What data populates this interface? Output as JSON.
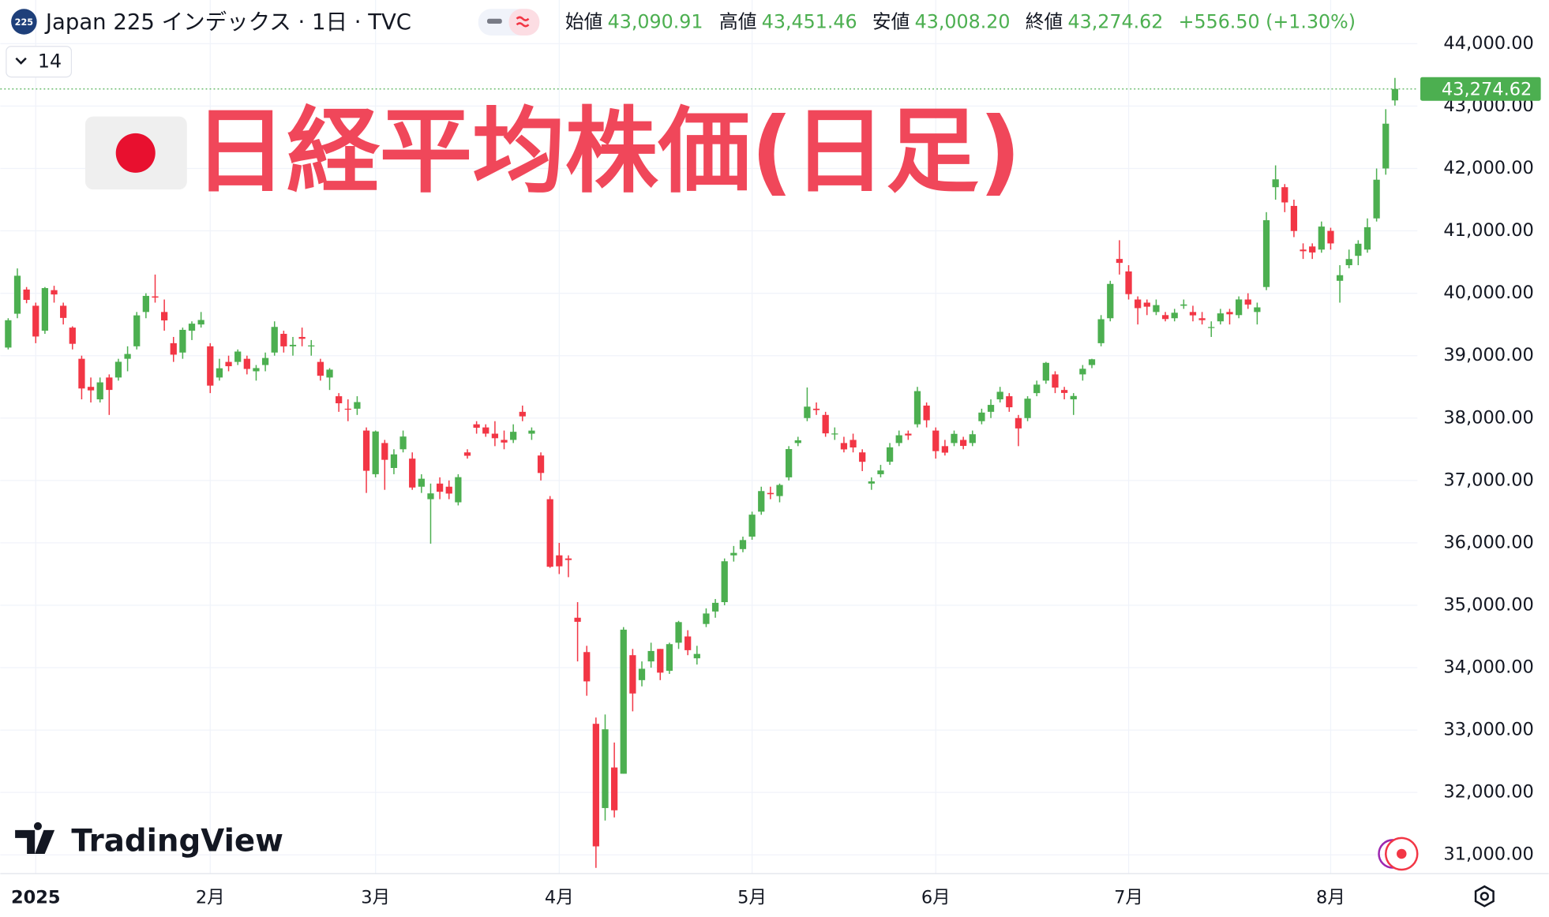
{
  "header": {
    "symbol_badge": "225",
    "symbol": "Japan 225 インデックス · 1日 · TVC",
    "interval": "14",
    "open_label": "始値",
    "open": "43,090.91",
    "high_label": "高値",
    "high": "43,451.46",
    "low_label": "安値",
    "low": "43,008.20",
    "close_label": "終値",
    "close": "43,274.62",
    "change": "+556.50 (+1.30%)"
  },
  "overlay_title": "日経平均株価(日足)",
  "watermark": "TradingView",
  "chart_data": {
    "type": "candlestick",
    "up_color": "#4caf50",
    "down_color": "#f23645",
    "grid": true,
    "ylim": [
      30700,
      44700
    ],
    "yticks": [
      {
        "value": 31000,
        "label": "31,000.00"
      },
      {
        "value": 32000,
        "label": "32,000.00"
      },
      {
        "value": 33000,
        "label": "33,000.00"
      },
      {
        "value": 34000,
        "label": "34,000.00"
      },
      {
        "value": 35000,
        "label": "35,000.00"
      },
      {
        "value": 36000,
        "label": "36,000.00"
      },
      {
        "value": 37000,
        "label": "37,000.00"
      },
      {
        "value": 38000,
        "label": "38,000.00"
      },
      {
        "value": 39000,
        "label": "39,000.00"
      },
      {
        "value": 40000,
        "label": "40,000.00"
      },
      {
        "value": 41000,
        "label": "41,000.00"
      },
      {
        "value": 42000,
        "label": "42,000.00"
      },
      {
        "value": 43000,
        "label": "43,000.00"
      },
      {
        "value": 44000,
        "label": "44,000.00"
      }
    ],
    "xticks": [
      {
        "value": 3,
        "label": "2025"
      },
      {
        "value": 22,
        "label": "2月"
      },
      {
        "value": 40,
        "label": "3月"
      },
      {
        "value": 60,
        "label": "4月"
      },
      {
        "value": 81,
        "label": "5月"
      },
      {
        "value": 101,
        "label": "6月"
      },
      {
        "value": 122,
        "label": "7月"
      },
      {
        "value": 144,
        "label": "8月"
      }
    ],
    "last_price": {
      "value": 43274.62,
      "label": "43,274.62"
    },
    "open": [
      39130,
      39672,
      40060,
      39800,
      39400,
      40050,
      39800,
      39450,
      38950,
      38500,
      38300,
      38650,
      38650,
      38950,
      39150,
      39700,
      39950,
      39700,
      39200,
      39050,
      39400,
      39500,
      39150,
      38650,
      38900,
      38900,
      38950,
      38750,
      38850,
      39050,
      39350,
      39150,
      39300,
      39150,
      38900,
      38650,
      38350,
      38150,
      38150,
      37800,
      37100,
      37600,
      37200,
      37500,
      37350,
      36900,
      36700,
      36950,
      36900,
      36650,
      37450,
      37900,
      37850,
      37750,
      37650,
      37650,
      38100,
      37750,
      37400,
      36700,
      35800,
      35750,
      34800,
      34250,
      33100,
      31750,
      32400,
      32300,
      34200,
      33800,
      34100,
      34300,
      33950,
      34400,
      34500,
      34150,
      34700,
      34900,
      35050,
      35800,
      35900,
      36100,
      36500,
      36800,
      36750,
      37050,
      37600,
      38000,
      38150,
      38050,
      37750,
      37600,
      37650,
      37450,
      36950,
      37100,
      37300,
      37600,
      37750,
      37900,
      38200,
      37800,
      37550,
      37600,
      37650,
      37600,
      37950,
      38100,
      38300,
      38350,
      38000,
      38000,
      38400,
      38600,
      38700,
      38450,
      38300,
      38700,
      38850,
      39200,
      39600,
      40550,
      40350,
      39900,
      39850,
      39700,
      39650,
      39600,
      39800,
      39700,
      39600,
      39450,
      39550,
      39700,
      39650,
      39900,
      39700,
      40100,
      41700,
      41700,
      41400,
      40700,
      40750,
      40700,
      41000,
      40200,
      40450,
      40600,
      40700,
      41200,
      42000,
      43090.91
    ],
    "high": [
      39600,
      40398,
      40100,
      39850,
      40100,
      40120,
      39850,
      39470,
      39000,
      38650,
      38650,
      38700,
      38950,
      39150,
      39700,
      40000,
      40300,
      39900,
      39300,
      39450,
      39550,
      39700,
      39200,
      38950,
      39000,
      39100,
      39000,
      38850,
      39050,
      39550,
      39400,
      39300,
      39450,
      39250,
      38950,
      38800,
      38400,
      38300,
      38350,
      37850,
      37800,
      37650,
      37500,
      37800,
      37450,
      37100,
      36950,
      37050,
      37000,
      37100,
      37500,
      37950,
      37900,
      37950,
      37800,
      37900,
      38200,
      37850,
      37450,
      36750,
      36000,
      35800,
      35050,
      34350,
      33200,
      33250,
      32800,
      34650,
      34300,
      34100,
      34400,
      34300,
      34400,
      34750,
      34600,
      34350,
      34950,
      35100,
      35750,
      35950,
      36100,
      36500,
      36900,
      36900,
      36950,
      37550,
      37700,
      38490,
      38250,
      38100,
      37850,
      37700,
      37750,
      37500,
      37050,
      37250,
      37600,
      37800,
      37800,
      38500,
      38250,
      37850,
      37650,
      37800,
      37700,
      37800,
      38150,
      38300,
      38500,
      38400,
      38050,
      38350,
      38600,
      38900,
      38750,
      38500,
      38400,
      38850,
      38950,
      39650,
      40200,
      40850,
      40450,
      39950,
      39900,
      39900,
      39700,
      39750,
      39900,
      39800,
      39700,
      39550,
      39750,
      39750,
      39950,
      40000,
      39850,
      41300,
      42050,
      41750,
      41500,
      40800,
      40800,
      41150,
      41050,
      40450,
      40700,
      40850,
      41200,
      42000,
      42950,
      43451.46
    ],
    "low": [
      39100,
      39600,
      39840,
      39200,
      39350,
      39850,
      39500,
      39100,
      38300,
      38250,
      38250,
      38050,
      38600,
      38750,
      39100,
      39600,
      39850,
      39400,
      38900,
      38950,
      39250,
      39450,
      38400,
      38600,
      38750,
      38850,
      38700,
      38600,
      38750,
      39000,
      39050,
      39000,
      39150,
      39000,
      38600,
      38450,
      38100,
      37950,
      38050,
      36800,
      37050,
      36850,
      37100,
      37450,
      36850,
      36800,
      35987,
      36700,
      36700,
      36600,
      37350,
      37750,
      37700,
      37550,
      37500,
      37600,
      37950,
      37650,
      37000,
      35600,
      35500,
      35450,
      34100,
      33550,
      30792,
      31550,
      31600,
      32300,
      33300,
      33700,
      34000,
      33800,
      33900,
      34300,
      34200,
      34050,
      34650,
      34800,
      35000,
      35700,
      35850,
      36050,
      36450,
      36700,
      36650,
      37000,
      37550,
      37950,
      38050,
      37700,
      37650,
      37450,
      37450,
      37150,
      36850,
      37050,
      37250,
      37550,
      37650,
      37850,
      37850,
      37350,
      37400,
      37550,
      37500,
      37550,
      37900,
      38000,
      38250,
      38100,
      37550,
      37950,
      38350,
      38550,
      38400,
      38300,
      38050,
      38600,
      38800,
      39150,
      39550,
      40300,
      39900,
      39500,
      39650,
      39650,
      39550,
      39550,
      39750,
      39550,
      39500,
      39300,
      39500,
      39500,
      39600,
      39750,
      39500,
      40050,
      41500,
      41300,
      40900,
      40550,
      40550,
      40650,
      40700,
      39850,
      40400,
      40450,
      40650,
      41150,
      41900,
      43008.2
    ],
    "close": [
      39568,
      40281,
      39894,
      39307,
      40083,
      39981,
      39605,
      39190,
      38474,
      38444,
      38572,
      38451,
      38902,
      39027,
      39646,
      39958,
      39931,
      39565,
      39016,
      39414,
      39513,
      39572,
      38520,
      38798,
      38831,
      39066,
      38787,
      38801,
      38963,
      39461,
      39149,
      39174,
      39270,
      39164,
      38678,
      38776,
      38237,
      38142,
      38256,
      37155,
      37785,
      37331,
      37418,
      37704,
      36887,
      37028,
      36793,
      36819,
      36790,
      37053,
      37396,
      37845,
      37751,
      37677,
      37608,
      37780,
      38027,
      37799,
      37120,
      35617,
      35624,
      35725,
      34735,
      33780,
      31136,
      33012,
      31714,
      34609,
      33586,
      33982,
      34267,
      33920,
      34377,
      34730,
      34280,
      34220,
      34868,
      35039,
      35705,
      35839,
      36045,
      36452,
      36830,
      36780,
      36928,
      37503,
      37644,
      38183,
      38128,
      37755,
      37753,
      37498,
      37529,
      37299,
      36985,
      37160,
      37531,
      37724,
      37722,
      38432,
      37965,
      37470,
      37446,
      37747,
      37554,
      37741,
      38088,
      38211,
      38421,
      38173,
      37834,
      38311,
      38536,
      38885,
      38488,
      38403,
      38354,
      38790,
      38942,
      39584,
      40150,
      40487,
      39986,
      39762,
      39785,
      39810,
      39587,
      39688,
      39821,
      39646,
      39569,
      39459,
      39678,
      39663,
      39901,
      39819,
      39774,
      41171,
      41826,
      41456,
      40998,
      40674,
      40654,
      41069,
      40799,
      40290,
      40549,
      40794,
      41059,
      41820,
      42718,
      43274.62
    ]
  }
}
